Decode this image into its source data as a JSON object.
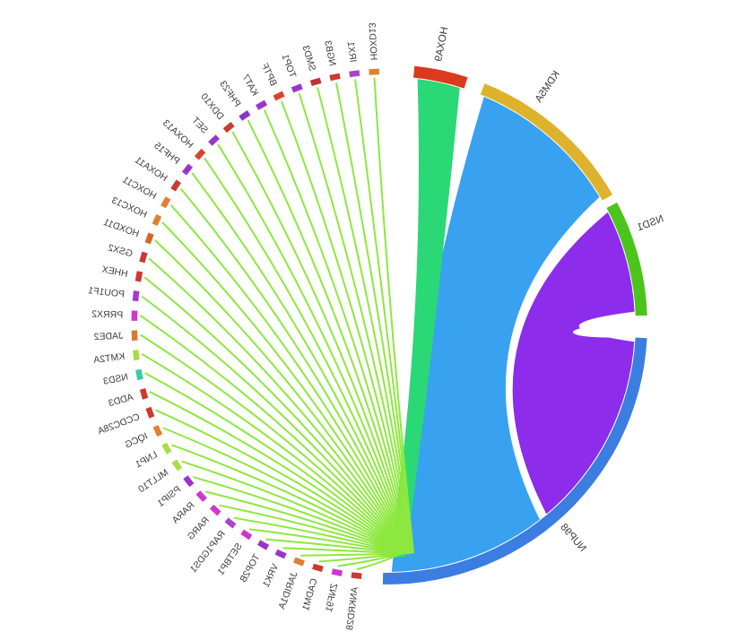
{
  "figure": {
    "background": "#ffffff",
    "label_color": "#3c3c3c",
    "mirrored_note": "figure is rendered horizontally mirrored (labels appear reversed)"
  },
  "chart_data": {
    "type": "chord",
    "title": "",
    "hub": {
      "name": "NUP98",
      "band_color": "#3b7de0",
      "arc_span_deg": 88
    },
    "major_partners": [
      {
        "name": "KDM5A",
        "band_color": "#dfb22c",
        "ribbon_color": "#38a2f0",
        "arc_span_deg": 37
      },
      {
        "name": "NSD1",
        "band_color": "#4cc41c",
        "ribbon_color": "#8d2ceb",
        "arc_span_deg": 26
      },
      {
        "name": "HOXA9",
        "band_color": "#da3a1e",
        "ribbon_color": "#2ad876",
        "arc_span_deg": 12
      }
    ],
    "minor_partners": [
      {
        "name": "HOXD13",
        "tick_color": "#e08030"
      },
      {
        "name": "IRX1",
        "tick_color": "#a845cc"
      },
      {
        "name": "NGB3",
        "tick_color": "#cc3930"
      },
      {
        "name": "SMD3",
        "tick_color": "#c03530"
      },
      {
        "name": "TOP1",
        "tick_color": "#9a35cc"
      },
      {
        "name": "BPTF",
        "tick_color": "#d8452e"
      },
      {
        "name": "KAT7",
        "tick_color": "#9a35cc"
      },
      {
        "name": "PHF23",
        "tick_color": "#8c34cc"
      },
      {
        "name": "DDX10",
        "tick_color": "#cc3930"
      },
      {
        "name": "SET",
        "tick_color": "#9a35cc"
      },
      {
        "name": "HOXA13",
        "tick_color": "#d8452e"
      },
      {
        "name": "PHF15",
        "tick_color": "#9a35cc"
      },
      {
        "name": "HOXA11",
        "tick_color": "#cc3930"
      },
      {
        "name": "HOXC11",
        "tick_color": "#e08030"
      },
      {
        "name": "HOXC13",
        "tick_color": "#e08030"
      },
      {
        "name": "HOXD11",
        "tick_color": "#d86428"
      },
      {
        "name": "GSX2",
        "tick_color": "#cc3930"
      },
      {
        "name": "HHEX",
        "tick_color": "#cc3930"
      },
      {
        "name": "POU1F1",
        "tick_color": "#a838cc"
      },
      {
        "name": "PRRX2",
        "tick_color": "#cc38cc"
      },
      {
        "name": "JADE2",
        "tick_color": "#dd7730"
      },
      {
        "name": "KMT2A",
        "tick_color": "#aadd44"
      },
      {
        "name": "NSD3",
        "tick_color": "#35ccaa"
      },
      {
        "name": "ADD3",
        "tick_color": "#cc3930"
      },
      {
        "name": "CCDC28A",
        "tick_color": "#cc3930"
      },
      {
        "name": "IQCG",
        "tick_color": "#e08030"
      },
      {
        "name": "LNP1",
        "tick_color": "#aadd44"
      },
      {
        "name": "MLLT10",
        "tick_color": "#aadd44"
      },
      {
        "name": "PSIP1",
        "tick_color": "#9a35cc"
      },
      {
        "name": "RARA",
        "tick_color": "#cc38cc"
      },
      {
        "name": "RARG",
        "tick_color": "#cc38cc"
      },
      {
        "name": "RAP1GDS1",
        "tick_color": "#a845cc"
      },
      {
        "name": "SETBP1",
        "tick_color": "#cc38cc"
      },
      {
        "name": "TOP2B",
        "tick_color": "#9a35cc"
      },
      {
        "name": "VRK1",
        "tick_color": "#9a35cc"
      },
      {
        "name": "JARID1A",
        "tick_color": "#e08030"
      },
      {
        "name": "CADM1",
        "tick_color": "#cc3930"
      },
      {
        "name": "ZNF91",
        "tick_color": "#cc38cc"
      },
      {
        "name": "ANKRD28",
        "tick_color": "#cc3930"
      }
    ],
    "connector_color": "#8ee73f",
    "legend": null,
    "grid": false
  }
}
